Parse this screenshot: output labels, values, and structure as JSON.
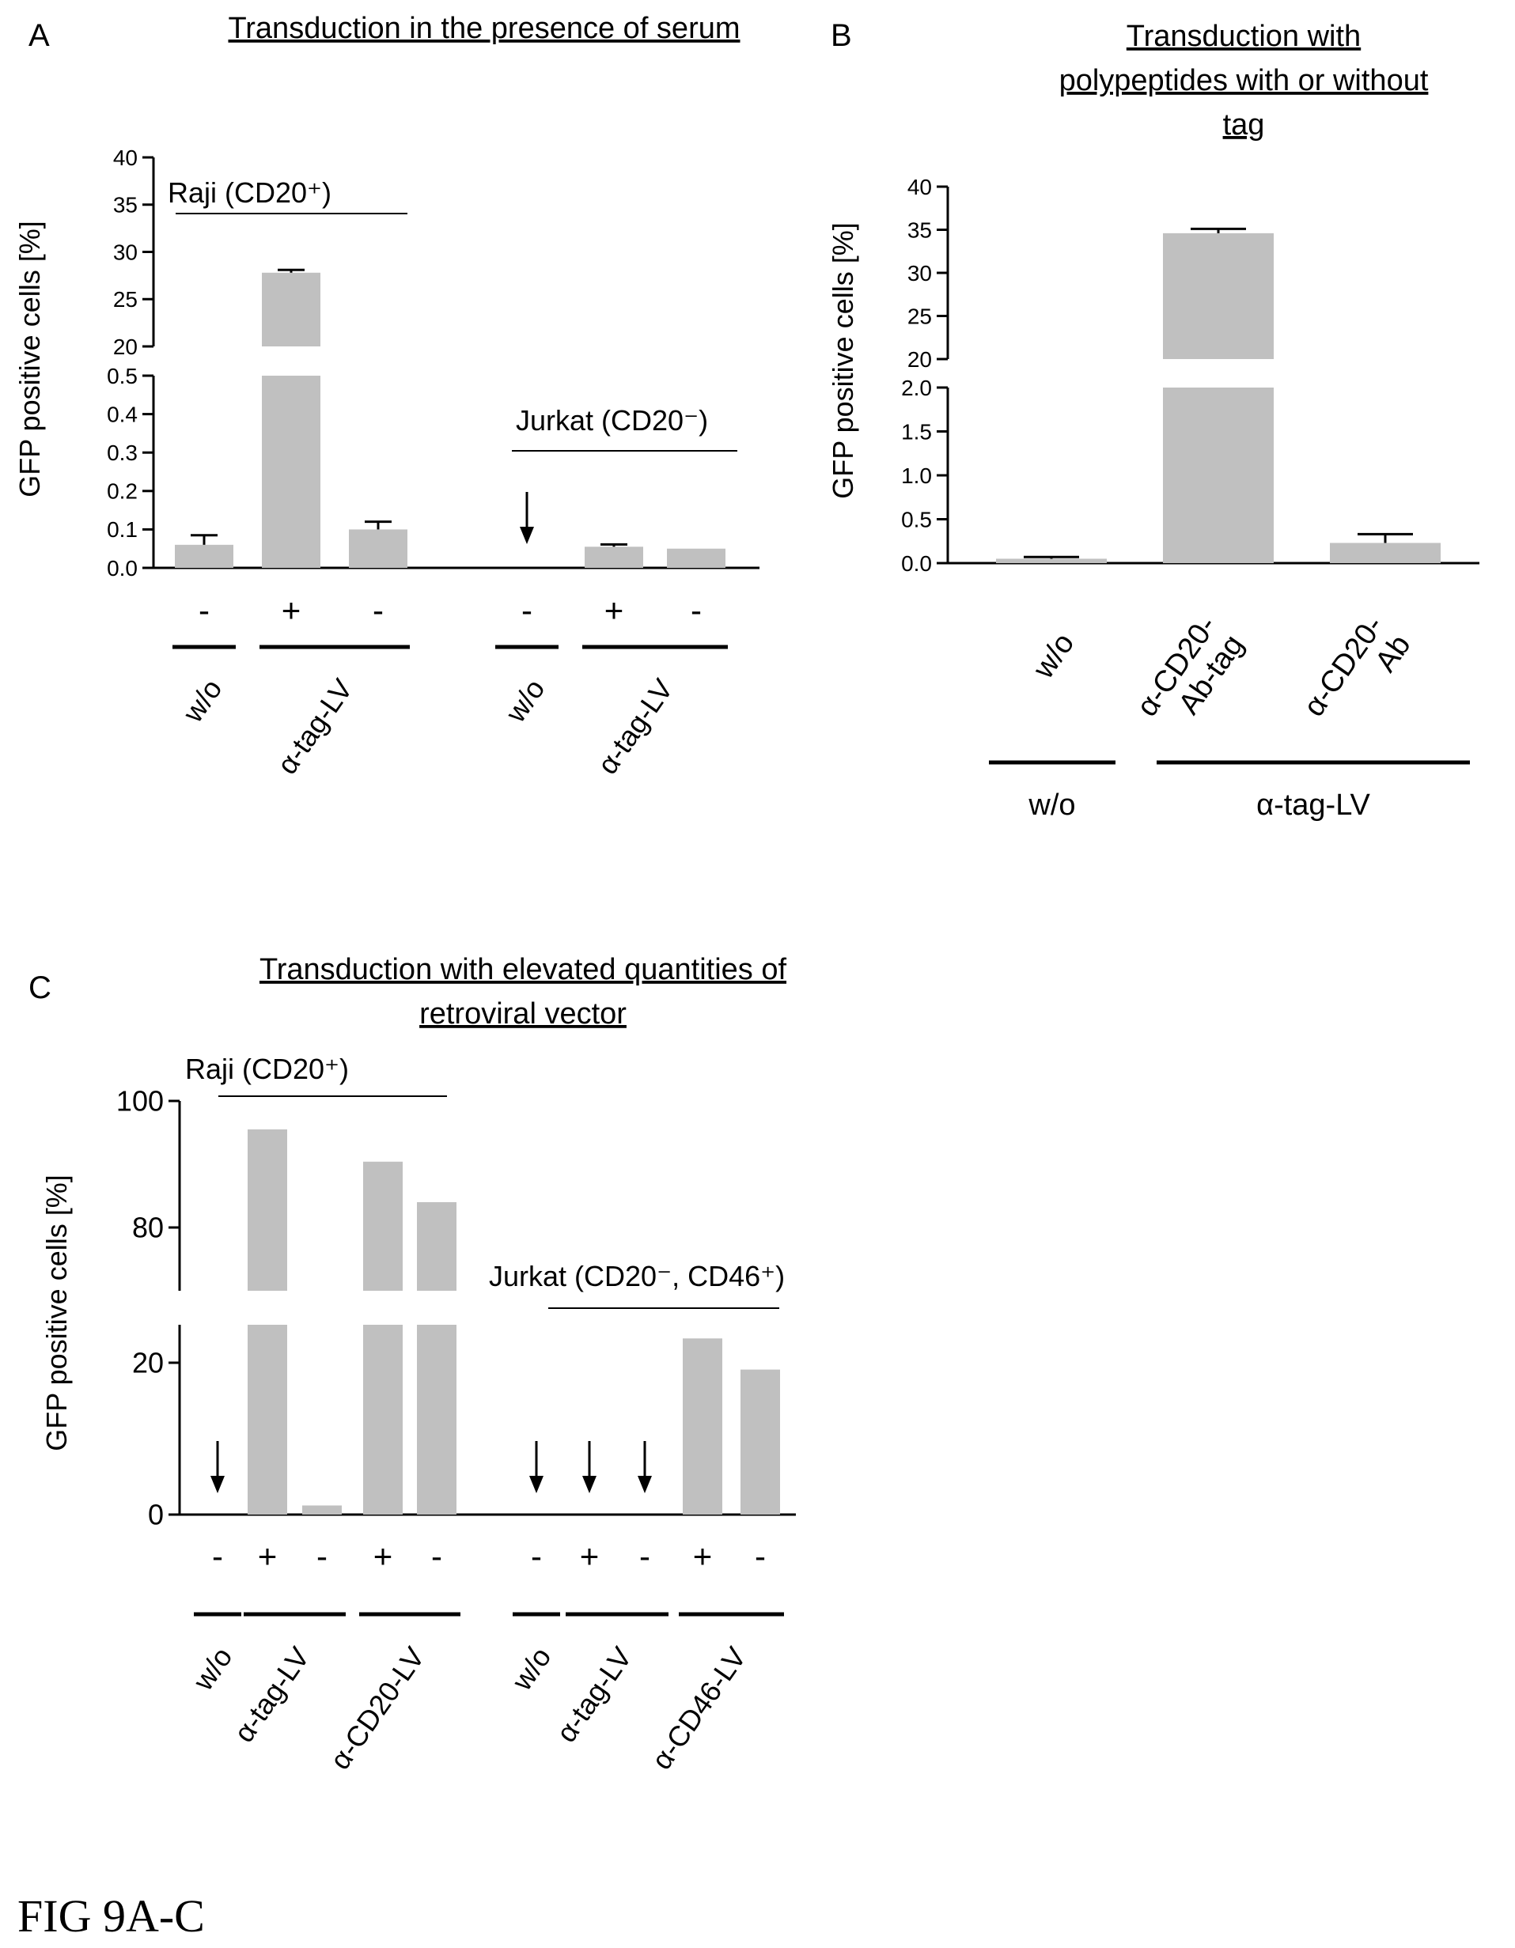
{
  "figure_label": "FIG 9A-C",
  "panels": {
    "A": {
      "letter": "A",
      "title": [
        "Transduction in the presence of serum"
      ]
    },
    "B": {
      "letter": "B",
      "title": [
        "Transduction with",
        "polypeptides with or without",
        "tag"
      ]
    },
    "C": {
      "letter": "C",
      "title": [
        "Transduction with elevated quantities of",
        "retroviral vector"
      ]
    }
  },
  "chart_data": [
    {
      "panel": "A",
      "type": "bar",
      "ylabel": "GFP positive cells [%]",
      "y_axis_break": true,
      "y_segments": [
        {
          "ylim": [
            0,
            0.5
          ],
          "ticks": [
            "0.0",
            "0.1",
            "0.2",
            "0.3",
            "0.4",
            "0.5"
          ]
        },
        {
          "ylim": [
            20,
            40
          ],
          "ticks": [
            "20",
            "25",
            "30",
            "35",
            "40"
          ]
        }
      ],
      "group_labels": [
        "Raji (CD20⁺)",
        "Jurkat (CD20⁻)"
      ],
      "groups": [
        {
          "label": "Raji (CD20⁺)",
          "bars": [
            {
              "sign": "-",
              "value": 0.06,
              "error": 0.025
            },
            {
              "sign": "+",
              "value": 27.8,
              "error": 0.3
            },
            {
              "sign": "-",
              "value": 0.1,
              "error": 0.02
            }
          ],
          "brackets": [
            {
              "label": "w/o",
              "bars": [
                0,
                0
              ]
            },
            {
              "label": "α-tag-LV",
              "bars": [
                1,
                2
              ]
            }
          ]
        },
        {
          "label": "Jurkat (CD20⁻)",
          "bars": [
            {
              "sign": "-",
              "value": 0.0,
              "arrow": true
            },
            {
              "sign": "+",
              "value": 0.055,
              "error": 0.006
            },
            {
              "sign": "-",
              "value": 0.05
            }
          ],
          "brackets": [
            {
              "label": "w/o",
              "bars": [
                0,
                0
              ]
            },
            {
              "label": "α-tag-LV",
              "bars": [
                1,
                2
              ]
            }
          ]
        }
      ]
    },
    {
      "panel": "B",
      "type": "bar",
      "ylabel": "GFP positive cells [%]",
      "y_axis_break": true,
      "y_segments": [
        {
          "ylim": [
            0,
            2.0
          ],
          "ticks": [
            "0.0",
            "0.5",
            "1.0",
            "1.5",
            "2.0"
          ]
        },
        {
          "ylim": [
            20,
            40
          ],
          "ticks": [
            "20",
            "25",
            "30",
            "35",
            "40"
          ]
        }
      ],
      "categories": [
        "w/o",
        "α-CD20-\nAb-tag",
        "α-CD20-\nAb"
      ],
      "bars": [
        {
          "value": 0.05,
          "error": 0.02
        },
        {
          "value": 34.6,
          "error": 0.5
        },
        {
          "value": 0.23,
          "error": 0.1
        }
      ],
      "brackets": [
        {
          "label": "w/o",
          "bars": [
            0,
            0
          ]
        },
        {
          "label": "α-tag-LV",
          "bars": [
            1,
            2
          ]
        }
      ]
    },
    {
      "panel": "C",
      "type": "bar",
      "ylabel": "GFP positive cells [%]",
      "y_axis_break": true,
      "y_segments": [
        {
          "ylim": [
            0,
            25
          ],
          "ticks": [
            "0",
            "20"
          ]
        },
        {
          "ylim": [
            70,
            100
          ],
          "ticks": [
            "80",
            "100"
          ]
        }
      ],
      "group_labels": [
        "Raji (CD20⁺)",
        "Jurkat (CD20⁻, CD46⁺)"
      ],
      "groups": [
        {
          "label": "Raji (CD20⁺)",
          "bars": [
            {
              "sign": "-",
              "value": 0,
              "arrow": true
            },
            {
              "sign": "+",
              "value": 95.5
            },
            {
              "sign": "-",
              "value": 1.2
            },
            {
              "sign": "+",
              "value": 90.4
            },
            {
              "sign": "-",
              "value": 84.0
            }
          ],
          "brackets": [
            {
              "label": "w/o",
              "bars": [
                0,
                0
              ]
            },
            {
              "label": "α-tag-LV",
              "bars": [
                1,
                2
              ]
            },
            {
              "label": "α-CD20-LV",
              "bars": [
                3,
                4
              ]
            }
          ]
        },
        {
          "label": "Jurkat (CD20⁻, CD46⁺)",
          "bars": [
            {
              "sign": "-",
              "value": 0,
              "arrow": true
            },
            {
              "sign": "+",
              "value": 0,
              "arrow": true
            },
            {
              "sign": "-",
              "value": 0,
              "arrow": true
            },
            {
              "sign": "+",
              "value": 23.2
            },
            {
              "sign": "-",
              "value": 19.1
            }
          ],
          "brackets": [
            {
              "label": "w/o",
              "bars": [
                0,
                0
              ]
            },
            {
              "label": "α-tag-LV",
              "bars": [
                1,
                2
              ]
            },
            {
              "label": "α-CD46-LV",
              "bars": [
                3,
                4
              ]
            }
          ]
        }
      ]
    }
  ],
  "colors": {
    "bar": "#c0c0c0",
    "ink": "#000000",
    "background": "#ffffff"
  }
}
